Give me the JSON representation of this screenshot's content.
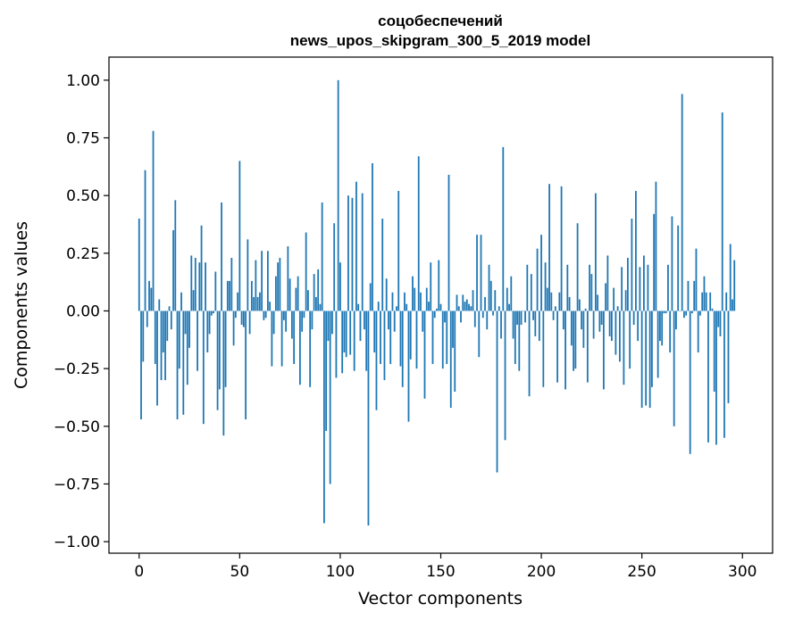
{
  "chart_data": {
    "type": "bar",
    "title": "соцобеспечений",
    "subtitle": "news_upos_skipgram_300_5_2019 model",
    "xlabel": "Vector components",
    "ylabel": "Components values",
    "xlim": [
      -15,
      315
    ],
    "ylim": [
      -1.05,
      1.1
    ],
    "xticks": [
      0,
      50,
      100,
      150,
      200,
      250,
      300
    ],
    "yticks": [
      1.0,
      0.75,
      0.5,
      0.25,
      0.0,
      -0.25,
      -0.5,
      -0.75,
      -1.0
    ],
    "ytick_labels": [
      "1.00",
      "0.75",
      "0.50",
      "0.25",
      "0.00",
      "−0.25",
      "−0.50",
      "−0.75",
      "−1.00"
    ],
    "bar_color": "#1f77b4",
    "series": [
      {
        "name": "values",
        "x_start": 0,
        "values": [
          0.4,
          -0.47,
          -0.22,
          0.61,
          -0.07,
          0.13,
          0.1,
          0.78,
          -0.23,
          -0.41,
          0.05,
          -0.3,
          -0.18,
          -0.3,
          -0.13,
          0.02,
          -0.08,
          0.35,
          0.48,
          -0.47,
          -0.25,
          0.08,
          -0.45,
          -0.1,
          -0.32,
          -0.16,
          0.24,
          0.09,
          0.23,
          -0.26,
          0.21,
          0.37,
          -0.49,
          0.21,
          -0.18,
          -0.1,
          -0.02,
          -0.01,
          0.17,
          -0.43,
          -0.34,
          0.47,
          -0.54,
          -0.33,
          0.13,
          0.13,
          0.23,
          -0.15,
          -0.03,
          0.08,
          0.65,
          -0.06,
          -0.07,
          -0.47,
          0.31,
          -0.1,
          0.13,
          0.06,
          0.22,
          0.06,
          0.08,
          0.26,
          -0.04,
          -0.03,
          0.26,
          0.04,
          -0.24,
          -0.1,
          0.15,
          0.21,
          0.23,
          -0.24,
          -0.04,
          -0.09,
          0.28,
          0.14,
          -0.12,
          -0.23,
          0.1,
          0.15,
          -0.32,
          -0.09,
          -0.03,
          0.34,
          0.09,
          -0.33,
          -0.08,
          0.16,
          0.06,
          0.18,
          0.03,
          0.47,
          -0.92,
          -0.52,
          -0.13,
          -0.75,
          -0.1,
          0.38,
          -0.29,
          1.0,
          0.21,
          -0.27,
          -0.18,
          -0.2,
          0.5,
          -0.19,
          0.49,
          -0.26,
          0.56,
          0.03,
          -0.13,
          0.51,
          -0.08,
          -0.26,
          -0.93,
          0.12,
          0.64,
          -0.18,
          -0.43,
          0.04,
          -0.23,
          0.4,
          -0.3,
          0.14,
          -0.08,
          -0.23,
          0.08,
          -0.09,
          0.02,
          0.52,
          -0.24,
          -0.33,
          0.08,
          0.03,
          -0.48,
          -0.21,
          0.15,
          0.1,
          -0.25,
          0.67,
          0.08,
          -0.09,
          -0.38,
          0.1,
          0.04,
          0.21,
          -0.23,
          -0.03,
          0.01,
          0.22,
          0.03,
          -0.25,
          -0.05,
          -0.23,
          0.59,
          -0.42,
          -0.16,
          -0.35,
          0.07,
          0.02,
          -0.05,
          0.07,
          0.04,
          0.05,
          0.03,
          0.02,
          0.09,
          -0.07,
          0.33,
          -0.2,
          0.33,
          -0.03,
          0.06,
          -0.08,
          0.2,
          0.13,
          -0.02,
          0.09,
          -0.7,
          0.02,
          -0.12,
          0.71,
          -0.56,
          0.1,
          0.03,
          0.15,
          -0.12,
          -0.23,
          -0.06,
          -0.26,
          -0.06,
          0.0,
          -0.05,
          0.2,
          -0.37,
          0.16,
          -0.04,
          -0.11,
          0.27,
          -0.13,
          0.33,
          -0.33,
          0.21,
          0.1,
          0.55,
          0.08,
          -0.04,
          0.02,
          -0.31,
          0.08,
          0.54,
          -0.08,
          -0.34,
          0.2,
          0.06,
          -0.15,
          -0.26,
          -0.25,
          0.38,
          0.05,
          -0.08,
          -0.16,
          0.01,
          -0.31,
          0.2,
          0.16,
          -0.12,
          0.51,
          0.07,
          -0.09,
          -0.06,
          -0.34,
          0.12,
          0.24,
          -0.11,
          -0.13,
          0.1,
          -0.19,
          0.02,
          -0.22,
          0.19,
          -0.32,
          0.09,
          0.23,
          -0.25,
          0.4,
          -0.06,
          0.52,
          -0.13,
          0.19,
          -0.42,
          0.24,
          -0.41,
          0.2,
          -0.42,
          -0.33,
          0.42,
          0.56,
          -0.29,
          -0.13,
          -0.15,
          -0.01,
          -0.01,
          0.2,
          -0.18,
          0.41,
          -0.5,
          -0.08,
          0.37,
          0.0,
          0.94,
          -0.03,
          -0.02,
          0.13,
          -0.62,
          -0.01,
          0.13,
          0.27,
          -0.18,
          -0.02,
          0.08,
          0.15,
          0.08,
          -0.57,
          0.08,
          0.01,
          -0.35,
          -0.58,
          -0.07,
          -0.11,
          0.86,
          -0.55,
          0.08,
          -0.4,
          0.29,
          0.05,
          0.22
        ]
      }
    ]
  }
}
